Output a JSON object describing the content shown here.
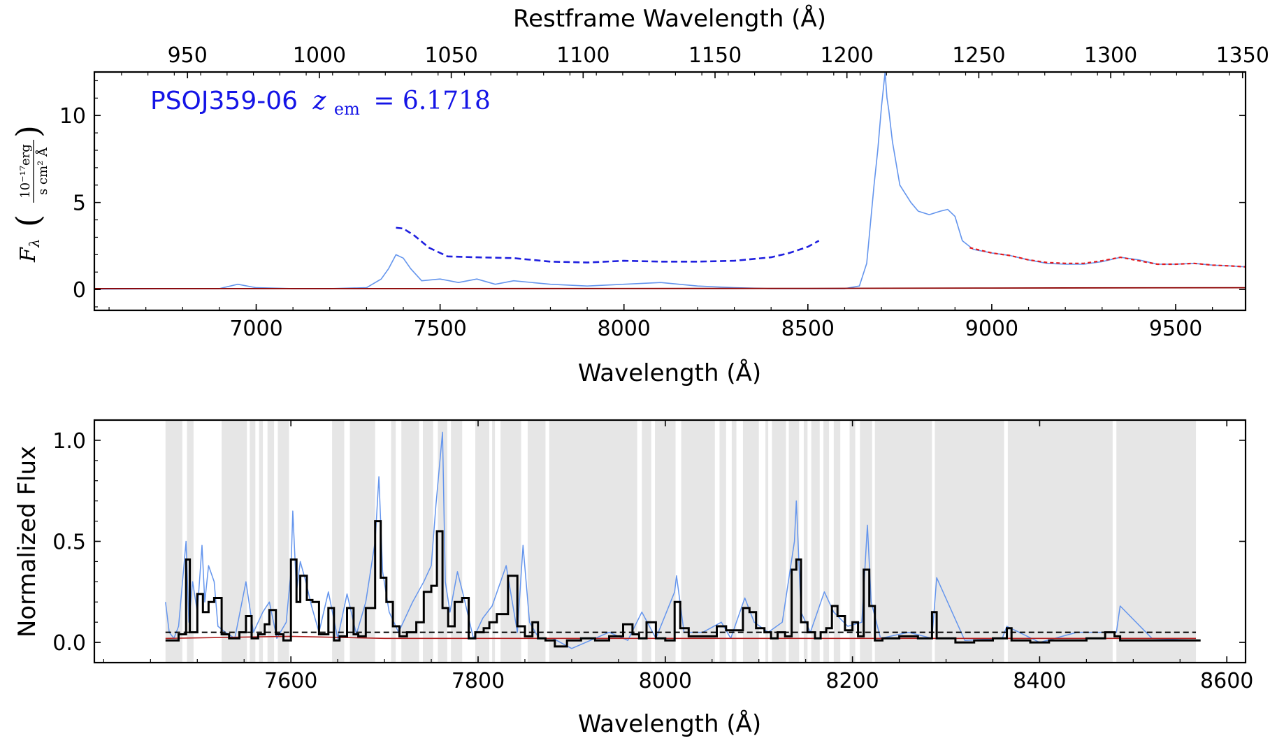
{
  "chart_data": [
    {
      "type": "line",
      "panel": "top",
      "title": "",
      "annotation": {
        "object": "PSOJ359-06",
        "redshift_label": "z",
        "redshift_sub": "em",
        "redshift_value": "= 6.1718",
        "color": "#1414e6"
      },
      "xlabel": "Wavelength (Å)",
      "top_xlabel": "Restframe Wavelength (Å)",
      "ylabel_symbol": "F",
      "ylabel_sub": "λ",
      "ylabel_units_num": "10⁻¹⁷erg",
      "ylabel_units_den": "s cm² Å",
      "xlim": [
        6560,
        9690
      ],
      "ylim": [
        -1.2,
        12.5
      ],
      "xticks": [
        7000,
        7500,
        8000,
        8500,
        9000,
        9500
      ],
      "xtick_labels": [
        "7000",
        "7500",
        "8000",
        "8500",
        "9000",
        "9500"
      ],
      "yticks": [
        0,
        5,
        10
      ],
      "ytick_labels": [
        "0",
        "5",
        "10"
      ],
      "top_ticks": [
        950,
        1000,
        1050,
        1100,
        1150,
        1200,
        1250,
        1300,
        1350
      ],
      "top_tick_labels": [
        "950",
        "1000",
        "1050",
        "1100",
        "1150",
        "1200",
        "1250",
        "1300",
        "1350"
      ],
      "redshift": 6.1718,
      "colors": {
        "spectrum": "#6495ed",
        "continuum": "#e41a1c",
        "noise": "#8b0000",
        "template": "#1f1fdf"
      },
      "series": [
        {
          "role": "spectrum",
          "x": [
            6560,
            6900,
            6950,
            7000,
            7100,
            7200,
            7300,
            7340,
            7360,
            7380,
            7400,
            7420,
            7450,
            7500,
            7550,
            7600,
            7650,
            7700,
            7800,
            7900,
            8000,
            8100,
            8200,
            8300,
            8400,
            8500,
            8600,
            8640,
            8660,
            8680,
            8690,
            8700,
            8705,
            8710,
            8715,
            8720,
            8730,
            8750,
            8780,
            8800,
            8830,
            8860,
            8880,
            8900,
            8920,
            8950,
            9000,
            9050,
            9100,
            9150,
            9200,
            9250,
            9300,
            9350,
            9400,
            9450,
            9500,
            9550,
            9600,
            9650,
            9690
          ],
          "y": [
            0.02,
            0.05,
            0.3,
            0.1,
            0.05,
            0.05,
            0.1,
            0.6,
            1.2,
            2.0,
            1.8,
            1.2,
            0.5,
            0.6,
            0.4,
            0.6,
            0.3,
            0.5,
            0.3,
            0.2,
            0.3,
            0.4,
            0.2,
            0.1,
            0.05,
            0.05,
            0.05,
            0.2,
            1.5,
            6.0,
            8.0,
            10.5,
            11.5,
            12.5,
            11.0,
            10.3,
            8.5,
            6.0,
            5.0,
            4.5,
            4.3,
            4.5,
            4.6,
            4.2,
            2.8,
            2.3,
            2.1,
            1.95,
            1.7,
            1.5,
            1.45,
            1.45,
            1.6,
            1.85,
            1.7,
            1.45,
            1.45,
            1.5,
            1.4,
            1.35,
            1.3
          ]
        },
        {
          "role": "continuum",
          "x": [
            8940,
            9000,
            9050,
            9100,
            9150,
            9200,
            9250,
            9300,
            9350,
            9400,
            9450,
            9500,
            9550,
            9600,
            9650,
            9690
          ],
          "y": [
            2.4,
            2.1,
            1.95,
            1.7,
            1.55,
            1.5,
            1.5,
            1.65,
            1.85,
            1.65,
            1.45,
            1.45,
            1.5,
            1.4,
            1.35,
            1.3
          ]
        },
        {
          "role": "noise",
          "x": [
            6560,
            7500,
            8500,
            9000,
            9690
          ],
          "y": [
            0.05,
            0.05,
            0.06,
            0.08,
            0.1
          ]
        },
        {
          "role": "template",
          "x": [
            7380,
            7400,
            7430,
            7470,
            7520,
            7600,
            7700,
            7800,
            7900,
            8000,
            8100,
            8200,
            8300,
            8400,
            8450,
            8500,
            8530
          ],
          "y": [
            3.55,
            3.5,
            3.1,
            2.4,
            1.9,
            1.85,
            1.8,
            1.6,
            1.55,
            1.65,
            1.6,
            1.6,
            1.65,
            1.85,
            2.1,
            2.45,
            2.8
          ]
        }
      ]
    },
    {
      "type": "line",
      "panel": "bottom",
      "title": "",
      "xlabel": "Wavelength (Å)",
      "ylabel": "Normalized Flux",
      "xlim": [
        7390,
        8620
      ],
      "ylim": [
        -0.1,
        1.1
      ],
      "xticks": [
        7600,
        7800,
        8000,
        8200,
        8400,
        8600
      ],
      "xtick_labels": [
        "7600",
        "7800",
        "8000",
        "8200",
        "8400",
        "8600"
      ],
      "yticks": [
        0.0,
        0.5,
        1.0
      ],
      "ytick_labels": [
        "0.0",
        "0.5",
        "1.0"
      ],
      "threshold": 0.05,
      "colors": {
        "spectrum": "#6495ed",
        "binned": "#000000",
        "noise": "#b22222",
        "mask": "#e6e6e6",
        "threshold": "#000000"
      },
      "masked_regions": [
        [
          7466,
          7484
        ],
        [
          7489,
          7496
        ],
        [
          7526,
          7553
        ],
        [
          7556,
          7562
        ],
        [
          7566,
          7570
        ],
        [
          7575,
          7582
        ],
        [
          7586,
          7598
        ],
        [
          7644,
          7657
        ],
        [
          7663,
          7690
        ],
        [
          7707,
          7712
        ],
        [
          7718,
          7737
        ],
        [
          7741,
          7752
        ],
        [
          7757,
          7767
        ],
        [
          7771,
          7783
        ],
        [
          7797,
          7812
        ],
        [
          7815,
          7818
        ],
        [
          7824,
          7846
        ],
        [
          7853,
          7872
        ],
        [
          7876,
          7970
        ],
        [
          7975,
          7985
        ],
        [
          7989,
          8011
        ],
        [
          8017,
          8053
        ],
        [
          8058,
          8065
        ],
        [
          8071,
          8076
        ],
        [
          8083,
          8100
        ],
        [
          8107,
          8110
        ],
        [
          8114,
          8129
        ],
        [
          8132,
          8143
        ],
        [
          8148,
          8152
        ],
        [
          8156,
          8165
        ],
        [
          8169,
          8175
        ],
        [
          8180,
          8187
        ],
        [
          8197,
          8203
        ],
        [
          8208,
          8221
        ],
        [
          8224,
          8285
        ],
        [
          8288,
          8362
        ],
        [
          8366,
          8478
        ],
        [
          8482,
          8567
        ]
      ],
      "series": [
        {
          "role": "binned",
          "x": [
            7466,
            7480,
            7488,
            7492,
            7500,
            7506,
            7512,
            7518,
            7526,
            7534,
            7545,
            7552,
            7558,
            7565,
            7572,
            7577,
            7584,
            7592,
            7600,
            7606,
            7610,
            7617,
            7623,
            7630,
            7640,
            7646,
            7652,
            7660,
            7667,
            7672,
            7680,
            7690,
            7696,
            7702,
            7709,
            7716,
            7724,
            7734,
            7742,
            7750,
            7756,
            7762,
            7768,
            7775,
            7783,
            7790,
            7797,
            7806,
            7812,
            7820,
            7832,
            7842,
            7850,
            7858,
            7864,
            7872,
            7882,
            7895,
            7910,
            7925,
            7940,
            7955,
            7965,
            7972,
            7980,
            7990,
            8000,
            8010,
            8016,
            8025,
            8040,
            8055,
            8065,
            8076,
            8083,
            8090,
            8097,
            8106,
            8113,
            8120,
            8128,
            8135,
            8140,
            8145,
            8152,
            8160,
            8166,
            8172,
            8178,
            8184,
            8192,
            8200,
            8206,
            8212,
            8218,
            8224,
            8232,
            8250,
            8270,
            8285,
            8290,
            8310,
            8330,
            8350,
            8365,
            8370,
            8390,
            8410,
            8430,
            8450,
            8470,
            8480,
            8486,
            8500,
            8520,
            8540,
            8567
          ],
          "y": [
            0.01,
            0.04,
            0.41,
            0.05,
            0.24,
            0.15,
            0.2,
            0.22,
            0.04,
            0.02,
            0.05,
            0.13,
            0.02,
            0.04,
            0.09,
            0.16,
            0.04,
            0.01,
            0.41,
            0.2,
            0.33,
            0.21,
            0.2,
            0.04,
            0.17,
            0.01,
            0.03,
            0.17,
            0.04,
            0.03,
            0.17,
            0.6,
            0.32,
            0.2,
            0.08,
            0.03,
            0.05,
            0.1,
            0.25,
            0.28,
            0.55,
            0.17,
            0.08,
            0.2,
            0.22,
            0.02,
            0.05,
            0.07,
            0.1,
            0.14,
            0.33,
            0.08,
            0.03,
            0.1,
            0.02,
            0.01,
            -0.02,
            0.01,
            0.02,
            0.01,
            0.03,
            0.09,
            0.04,
            0.02,
            0.1,
            0.02,
            0.01,
            0.2,
            0.07,
            0.03,
            0.03,
            0.08,
            0.06,
            0.06,
            0.17,
            0.15,
            0.07,
            0.05,
            0.02,
            0.05,
            0.03,
            0.36,
            0.41,
            0.1,
            0.05,
            0.02,
            0.05,
            0.07,
            0.18,
            0.13,
            0.06,
            0.1,
            0.03,
            0.36,
            0.18,
            0.01,
            0.02,
            0.03,
            0.02,
            0.15,
            0.02,
            0.0,
            0.01,
            0.02,
            0.07,
            0.01,
            0.0,
            0.01,
            0.01,
            0.02,
            0.05,
            0.03,
            0.01,
            0.01,
            0.01,
            0.01,
            0.01
          ]
        },
        {
          "role": "spectrum",
          "x": [
            7466,
            7470,
            7475,
            7480,
            7488,
            7491,
            7495,
            7500,
            7505,
            7508,
            7512,
            7518,
            7522,
            7530,
            7540,
            7552,
            7560,
            7570,
            7577,
            7585,
            7595,
            7600,
            7602,
            7606,
            7610,
            7616,
            7622,
            7630,
            7640,
            7650,
            7660,
            7670,
            7680,
            7690,
            7694,
            7698,
            7705,
            7715,
            7730,
            7742,
            7750,
            7755,
            7762,
            7765,
            7770,
            7778,
            7785,
            7795,
            7805,
            7815,
            7830,
            7842,
            7848,
            7855,
            7865,
            7880,
            7900,
            7920,
            7940,
            7960,
            7975,
            7990,
            8010,
            8012,
            8020,
            8040,
            8060,
            8070,
            8085,
            8095,
            8110,
            8125,
            8138,
            8140,
            8145,
            8155,
            8170,
            8180,
            8195,
            8210,
            8216,
            8220,
            8230,
            8260,
            8285,
            8290,
            8320,
            8360,
            8365,
            8400,
            8440,
            8482,
            8486,
            8520,
            8567
          ],
          "y": [
            0.2,
            0.05,
            0.02,
            0.08,
            0.5,
            0.1,
            0.3,
            0.15,
            0.48,
            0.2,
            0.38,
            0.3,
            0.08,
            0.05,
            0.02,
            0.3,
            0.05,
            0.15,
            0.2,
            0.02,
            0.1,
            0.35,
            0.65,
            0.25,
            0.4,
            0.3,
            0.18,
            0.05,
            0.25,
            0.02,
            0.24,
            0.04,
            0.2,
            0.5,
            0.82,
            0.35,
            0.15,
            0.05,
            0.2,
            0.3,
            0.38,
            0.68,
            1.04,
            0.3,
            0.15,
            0.35,
            0.22,
            0.02,
            0.12,
            0.18,
            0.38,
            0.05,
            0.48,
            0.1,
            0.02,
            0.02,
            -0.03,
            0.01,
            0.05,
            0.01,
            0.15,
            0.02,
            0.25,
            0.33,
            0.05,
            0.05,
            0.1,
            0.02,
            0.22,
            0.1,
            0.05,
            0.1,
            0.5,
            0.7,
            0.15,
            0.05,
            0.25,
            0.15,
            0.08,
            0.1,
            0.58,
            0.2,
            0.02,
            0.05,
            0.02,
            0.32,
            0.01,
            0.02,
            0.08,
            0.0,
            0.05,
            0.05,
            0.18,
            0.02,
            0.01
          ]
        },
        {
          "role": "noise",
          "x": [
            7466,
            7600,
            7700,
            7800,
            7900,
            8000,
            8100,
            8200,
            8300,
            8400,
            8500,
            8567
          ],
          "y": [
            0.02,
            0.03,
            0.02,
            0.02,
            0.02,
            0.02,
            0.02,
            0.02,
            0.02,
            0.02,
            0.02,
            0.02
          ]
        }
      ]
    }
  ]
}
